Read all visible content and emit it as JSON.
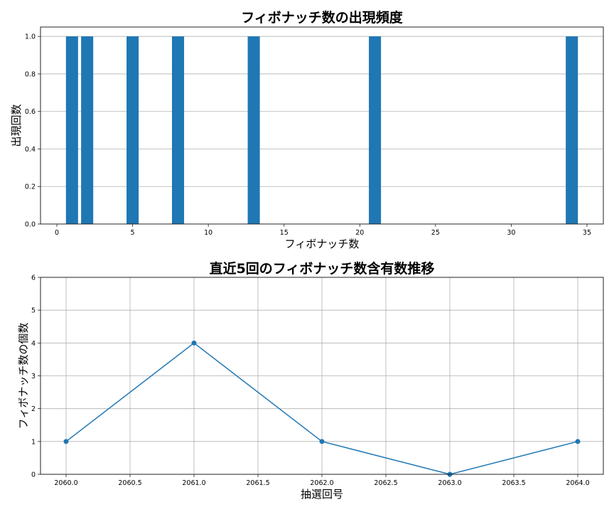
{
  "colors": {
    "bar": "#1f77b4",
    "line": "#1f77b4",
    "grid": "#b0b0b0",
    "axis": "#222222"
  },
  "chart_data": [
    {
      "type": "bar",
      "title": "フィボナッチ数の出現頻度",
      "xlabel": "フィボナッチ数",
      "ylabel": "出現回数",
      "categories": [
        1,
        2,
        5,
        8,
        13,
        21,
        34
      ],
      "values": [
        1,
        1,
        1,
        1,
        1,
        1,
        1
      ],
      "bar_width": 0.8,
      "xlim": [
        -1.08,
        36.08
      ],
      "ylim": [
        0,
        1.05
      ],
      "xticks": [
        0,
        5,
        10,
        15,
        20,
        25,
        30,
        35
      ],
      "yticks": [
        0.0,
        0.2,
        0.4,
        0.6,
        0.8,
        1.0
      ],
      "ytick_labels": [
        "0.0",
        "0.2",
        "0.4",
        "0.6",
        "0.8",
        "1.0"
      ],
      "grid": "y",
      "legend": null
    },
    {
      "type": "line",
      "title": "直近5回のフィボナッチ数含有数推移",
      "xlabel": "抽選回号",
      "ylabel": "フィボナッチ数の個数",
      "x": [
        2060,
        2061,
        2062,
        2063,
        2064
      ],
      "values": [
        1,
        4,
        1,
        0,
        1
      ],
      "marker": "o",
      "xlim": [
        2059.8,
        2064.2
      ],
      "ylim": [
        0,
        6
      ],
      "xticks": [
        2060.0,
        2060.5,
        2061.0,
        2061.5,
        2062.0,
        2062.5,
        2063.0,
        2063.5,
        2064.0
      ],
      "xtick_labels": [
        "2060.0",
        "2060.5",
        "2061.0",
        "2061.5",
        "2062.0",
        "2062.5",
        "2063.0",
        "2063.5",
        "2064.0"
      ],
      "yticks": [
        0,
        1,
        2,
        3,
        4,
        5,
        6
      ],
      "grid": "both",
      "legend": null
    }
  ]
}
